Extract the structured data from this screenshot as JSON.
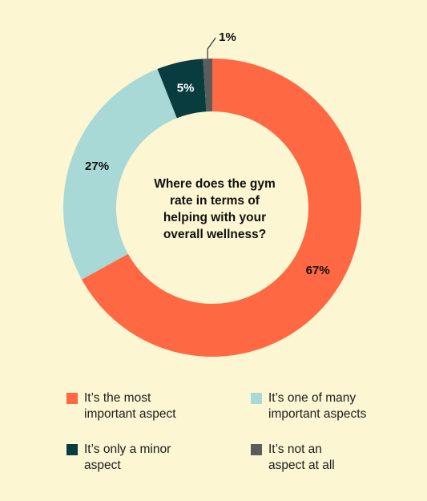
{
  "chart_data": {
    "type": "pie",
    "title": "Where does the gym rate in terms of helping with your overall wellness?",
    "categories": [
      "It’s the most important aspect",
      "It’s one of many important aspects",
      "It’s only a minor aspect",
      "It’s not an aspect at all"
    ],
    "values": [
      67,
      27,
      5,
      1
    ],
    "value_labels": [
      "67%",
      "27%",
      "5%",
      "1%"
    ],
    "colors": [
      "#fe6843",
      "#a8d9d6",
      "#083c3f",
      "#5c5c5c"
    ],
    "donut": true,
    "legend_position": "bottom"
  },
  "legend": [
    {
      "label": "It’s the most\nimportant aspect",
      "color": "#fe6843"
    },
    {
      "label": "It’s one of many\nimportant aspects",
      "color": "#a8d9d6"
    },
    {
      "label": "It’s only a minor\naspect",
      "color": "#083c3f"
    },
    {
      "label": "It’s not an\naspect at all",
      "color": "#5c5c5c"
    }
  ]
}
